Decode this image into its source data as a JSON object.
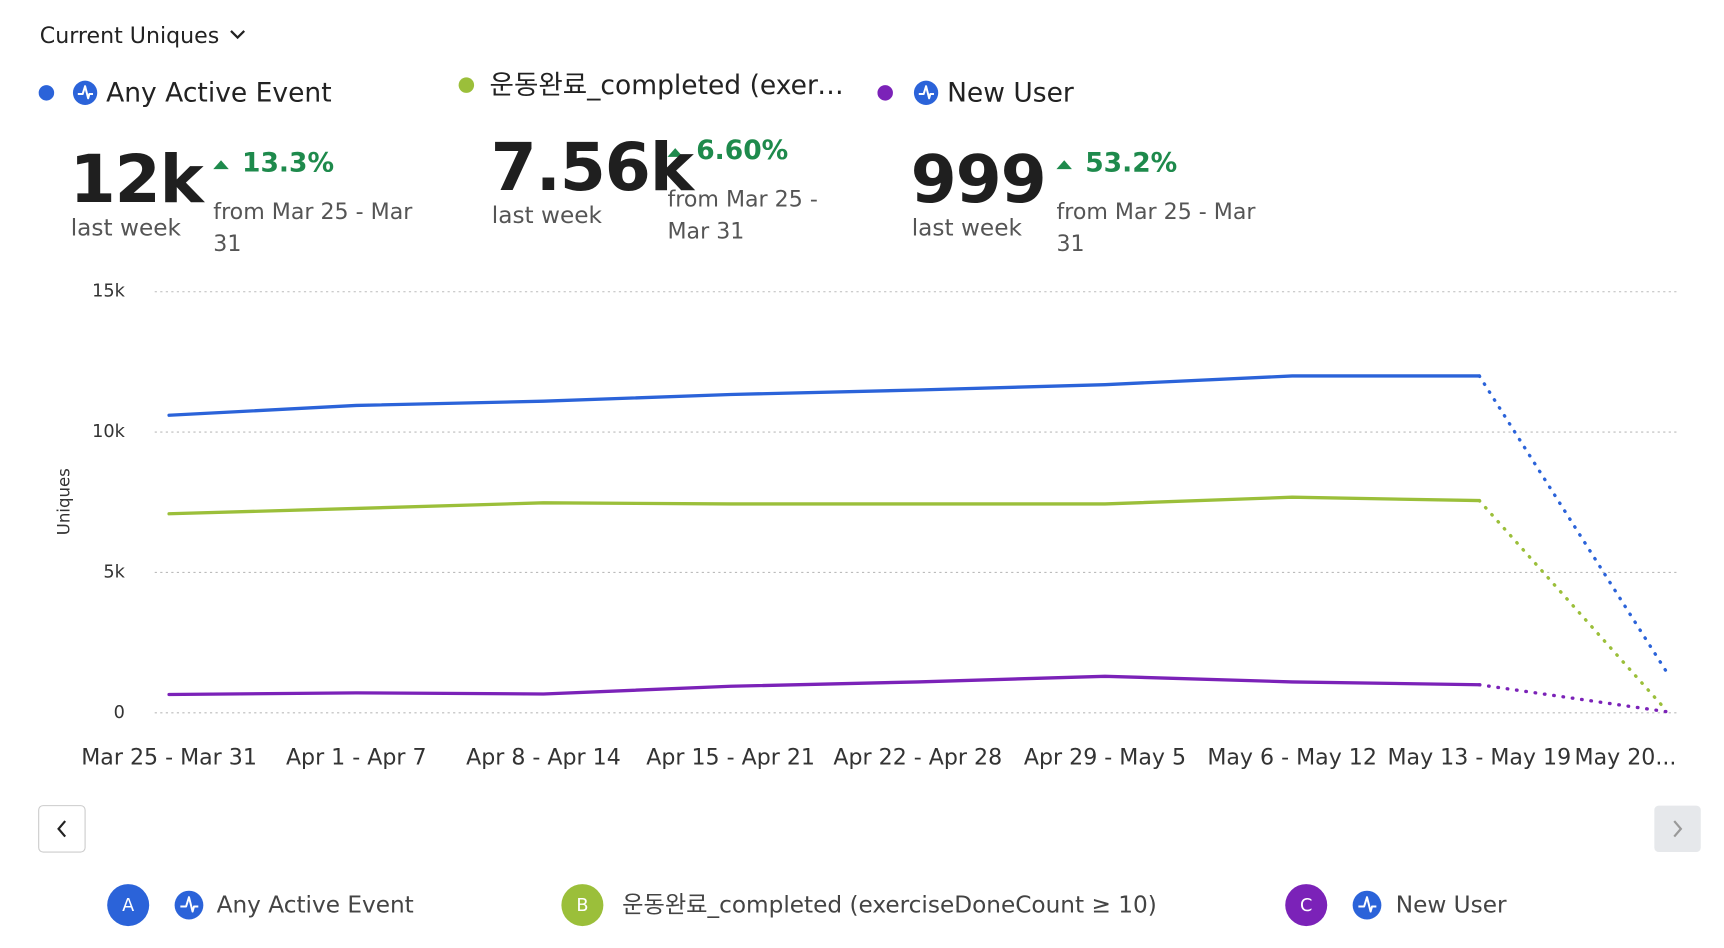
{
  "header": {
    "metric_selector": "Current Uniques"
  },
  "summary": [
    {
      "value": "12k",
      "period": "last week",
      "change": "13.3%",
      "comparison": "from Mar 25 - Mar 31"
    },
    {
      "value": "7.56k",
      "period": "last week",
      "change": "6.60%",
      "comparison": "from Mar 25 - Mar 31"
    },
    {
      "value": "999",
      "period": "last week",
      "change": "53.2%",
      "comparison": "from Mar 25 - Mar 31"
    }
  ],
  "chart_data": {
    "type": "line",
    "y_label": "Uniques",
    "categories": [
      "Mar 25 - Mar 31",
      "Apr 1 - Apr 7",
      "Apr 8 - Apr 14",
      "Apr 15 - Apr 21",
      "Apr 22 - Apr 28",
      "Apr 29 - May 5",
      "May 6 - May 12",
      "May 13 - May 19",
      "May 20..."
    ],
    "series": [
      {
        "letter": "A",
        "name": "Any Active Event",
        "color": "#2b63d9",
        "values": [
          10600,
          10950,
          11100,
          11340,
          11500,
          11690,
          12000,
          12000,
          1460
        ]
      },
      {
        "letter": "B",
        "name": "운동완료_completed (exerciseDoneCount ≥ 10)",
        "color": "#9bbf3a",
        "values": [
          7090,
          7280,
          7480,
          7440,
          7440,
          7440,
          7680,
          7560,
          80
        ]
      },
      {
        "letter": "C",
        "name": "New User",
        "color": "#7b22b8",
        "values": [
          652,
          710,
          670,
          945,
          1100,
          1300,
          1100,
          999,
          40
        ]
      }
    ],
    "ylim": [
      0,
      15000
    ],
    "yticks": [
      {
        "value": 0,
        "label": "0"
      },
      {
        "value": 5000,
        "label": "5k"
      },
      {
        "value": 10000,
        "label": "10k"
      },
      {
        "value": 15000,
        "label": "15k"
      }
    ],
    "grid": true,
    "incomplete_last": true
  }
}
